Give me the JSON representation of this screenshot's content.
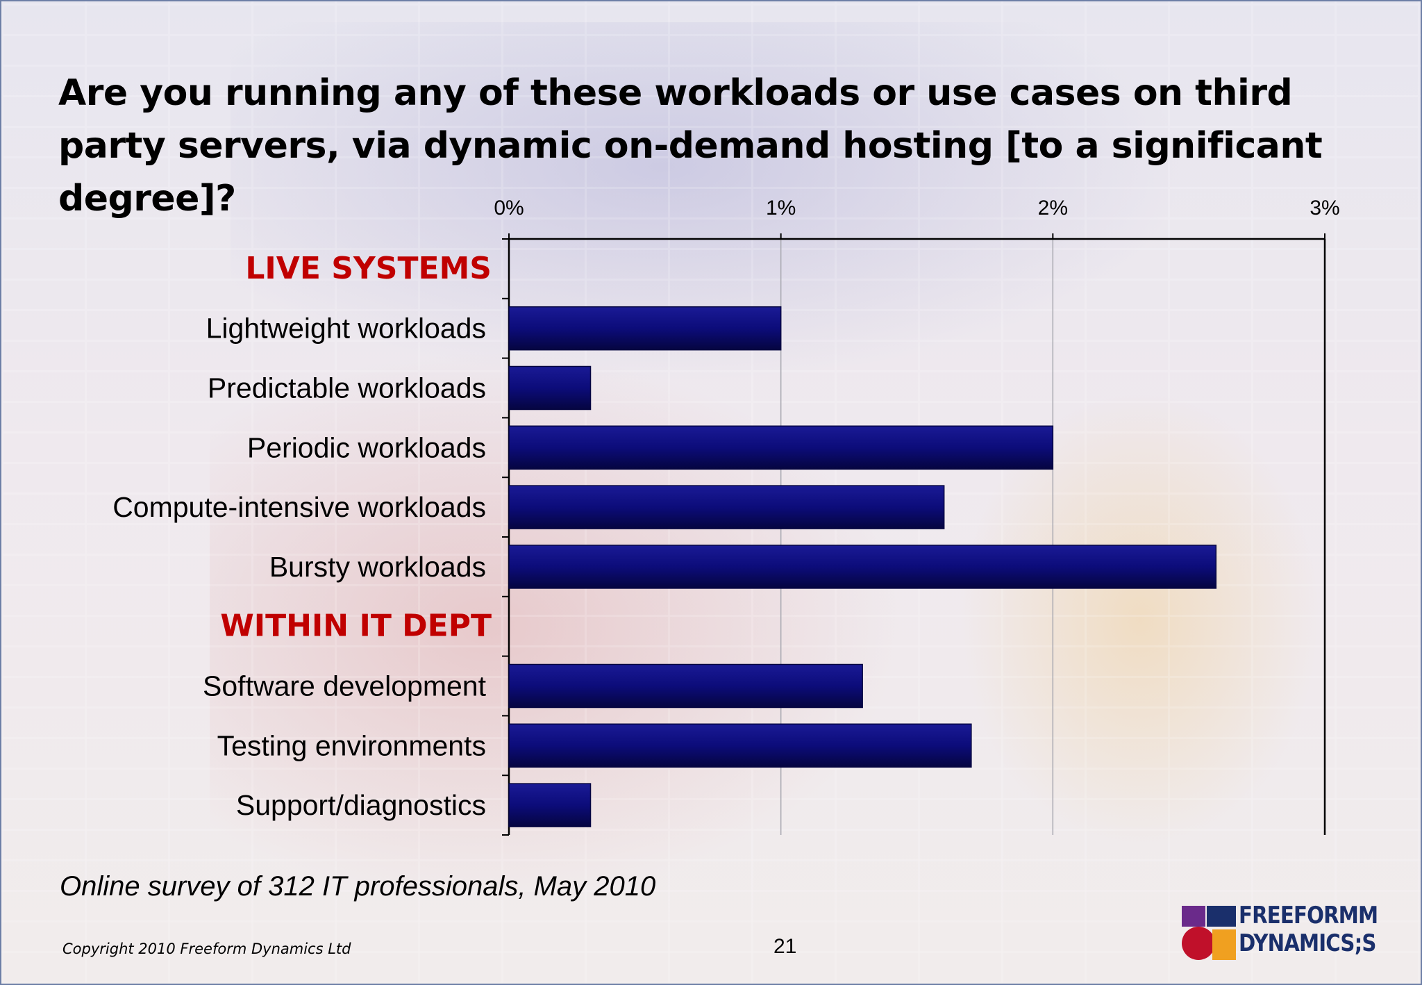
{
  "slide": {
    "title": "Are you running any of these workloads or use cases on third party servers, via dynamic on-demand hosting [to a significant degree]?",
    "subtitle": "Online survey of 312 IT professionals, May 2010",
    "copyright": "Copyright 2010 Freeform Dynamics Ltd",
    "page_number": "21",
    "logo": {
      "line1": "FREEFORMM",
      "line2": "DYNAMICS;S"
    }
  },
  "colors": {
    "bar": "#0c0c7a",
    "bar_edge": "#050540",
    "group_header": "#c00000",
    "axis": "#000000",
    "grid": "#a8a8b0"
  },
  "chart_data": {
    "type": "bar",
    "orientation": "horizontal",
    "title": "",
    "xlabel": "",
    "ylabel": "",
    "xlim": [
      0,
      3
    ],
    "x_ticks": [
      "0%",
      "1%",
      "2%",
      "3%"
    ],
    "x_axis_position": "top",
    "grid": true,
    "legend": "none",
    "groups": [
      {
        "name": "LIVE SYSTEMS",
        "categories": [
          "Lightweight workloads",
          "Predictable workloads",
          "Periodic workloads",
          "Compute-intensive workloads",
          "Bursty workloads"
        ],
        "values": [
          1.0,
          0.3,
          2.0,
          1.6,
          2.6
        ]
      },
      {
        "name": "WITHIN IT DEPT",
        "categories": [
          "Software development",
          "Testing environments",
          "Support/diagnostics"
        ],
        "values": [
          1.3,
          1.7,
          0.3
        ]
      }
    ]
  }
}
